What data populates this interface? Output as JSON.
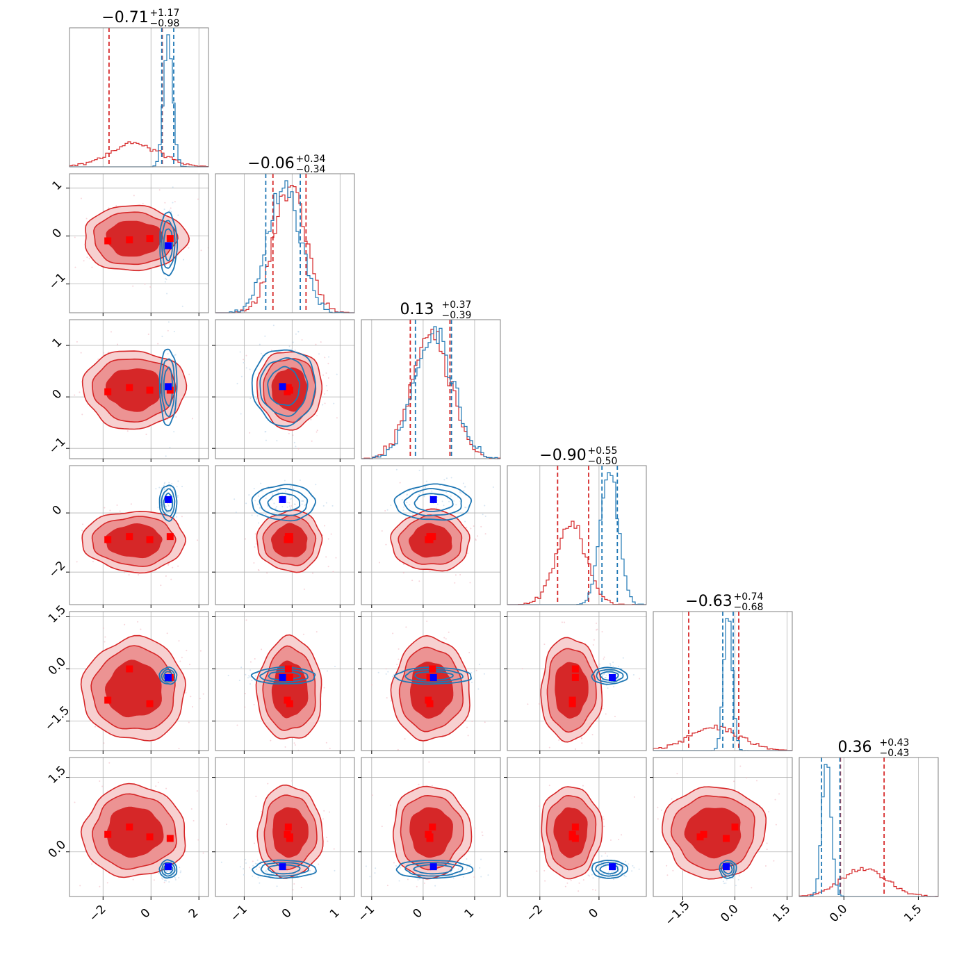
{
  "chart_data": {
    "type": "corner",
    "grid": true,
    "n_params": 6,
    "colors": {
      "red": "#d62728",
      "red_level1": "#f7d0d0",
      "red_level2": "#ec9393",
      "blue": "#1f77b4",
      "blue_marker": "#0000ff",
      "red_marker": "#ff0000"
    },
    "series": [
      {
        "color": "#d62728",
        "mean": [
          -0.7,
          -0.05,
          0.15,
          -0.95,
          -0.6,
          0.4
        ],
        "sd": [
          1.05,
          0.33,
          0.37,
          0.5,
          0.72,
          0.45
        ],
        "quantiles_16_84": [
          [
            -1.75,
            0.47
          ],
          [
            -0.4,
            0.29
          ],
          [
            -0.25,
            0.52
          ],
          [
            -1.4,
            -0.35
          ],
          [
            -1.33,
            0.11
          ],
          [
            -0.07,
            0.81
          ]
        ]
      },
      {
        "color": "#1f77b4",
        "mean": [
          0.72,
          -0.17,
          0.2,
          0.35,
          -0.2,
          -0.35
        ],
        "sd": [
          0.18,
          0.33,
          0.37,
          0.3,
          0.12,
          0.09
        ],
        "quantiles_16_84": [
          [
            0.45,
            0.95
          ],
          [
            -0.55,
            0.17
          ],
          [
            -0.15,
            0.55
          ],
          [
            0.1,
            0.62
          ],
          [
            -0.35,
            -0.05
          ],
          [
            -0.45,
            -0.08
          ]
        ]
      }
    ],
    "markers": {
      "blue": [
        0.72,
        -0.2,
        0.2,
        0.45,
        -0.25,
        -0.3
      ],
      "red": [
        [
          -1.8,
          -0.1,
          0.1,
          -0.9,
          -0.9,
          0.35
        ],
        [
          -0.9,
          -0.08,
          0.18,
          -0.8,
          0.0,
          0.5
        ],
        [
          -0.05,
          -0.05,
          0.13,
          -0.9,
          -1.0,
          0.3
        ],
        [
          0.8,
          -0.05,
          0.13,
          -0.8,
          -0.25,
          0.27
        ]
      ]
    },
    "titles": [
      {
        "value": "−0.71",
        "plus": "+1.17",
        "minus": "−0.98"
      },
      {
        "value": "−0.06",
        "plus": "+0.34",
        "minus": "−0.34"
      },
      {
        "value": "0.13",
        "plus": "+0.37",
        "minus": "−0.39"
      },
      {
        "value": "−0.90",
        "plus": "+0.55",
        "minus": "−0.50"
      },
      {
        "value": "−0.63",
        "plus": "+0.74",
        "minus": "−0.68"
      },
      {
        "value": "0.36",
        "plus": "+0.43",
        "minus": "−0.43"
      }
    ],
    "axis_ranges": [
      [
        -3.4,
        2.4
      ],
      [
        -1.6,
        1.3
      ],
      [
        -1.2,
        1.5
      ],
      [
        -3.1,
        1.6
      ],
      [
        -2.35,
        1.65
      ],
      [
        -0.9,
        1.9
      ]
    ],
    "ticks": [
      {
        "values": [
          -2,
          0,
          2
        ],
        "labels": [
          "−2",
          "0",
          "2"
        ]
      },
      {
        "values": [
          -1,
          0,
          1
        ],
        "labels": [
          "−1",
          "0",
          "1"
        ]
      },
      {
        "values": [
          -1,
          0,
          1
        ],
        "labels": [
          "−1",
          "0",
          "1"
        ]
      },
      {
        "values": [
          -2,
          0
        ],
        "labels": [
          "−2",
          "0"
        ]
      },
      {
        "values": [
          -1.5,
          0.0,
          1.5
        ],
        "labels": [
          "−1.5",
          "0.0",
          "1.5"
        ]
      },
      {
        "values": [
          0.0,
          1.5
        ],
        "labels": [
          "0.0",
          "1.5"
        ]
      }
    ]
  }
}
